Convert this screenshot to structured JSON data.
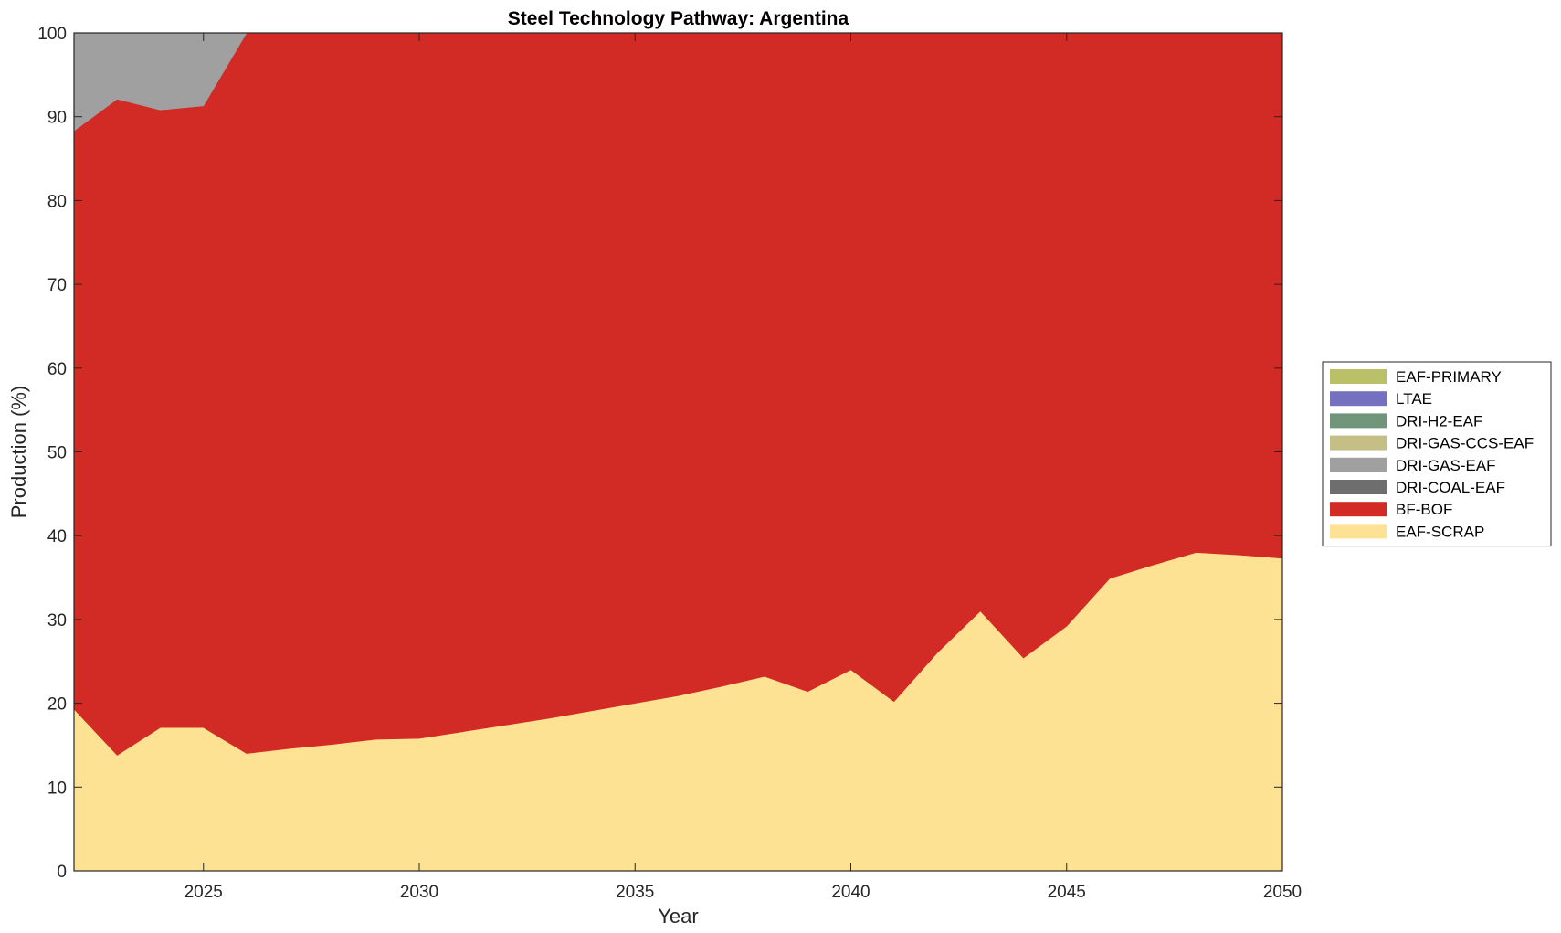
{
  "chart_data": {
    "type": "area",
    "stacked": true,
    "title": "Steel Technology Pathway: Argentina",
    "xlabel": "Year",
    "ylabel": "Production (%)",
    "xlim": [
      2022,
      2050
    ],
    "ylim": [
      0,
      100
    ],
    "xticks": [
      "2025",
      "2030",
      "2035",
      "2040",
      "2045",
      "2050"
    ],
    "yticks": [
      "0",
      "10",
      "20",
      "30",
      "40",
      "50",
      "60",
      "70",
      "80",
      "90",
      "100"
    ],
    "grid": false,
    "legend_position": "right",
    "x": [
      2022,
      2023,
      2024,
      2025,
      2026,
      2027,
      2028,
      2029,
      2030,
      2031,
      2032,
      2033,
      2034,
      2035,
      2036,
      2037,
      2038,
      2039,
      2040,
      2041,
      2042,
      2043,
      2044,
      2045,
      2046,
      2047,
      2048,
      2049,
      2050
    ],
    "series": [
      {
        "name": "EAF-SCRAP",
        "color": "#FDE293",
        "values": [
          19.3,
          13.8,
          17.1,
          17.1,
          14.0,
          14.6,
          15.1,
          15.7,
          15.8,
          16.6,
          17.4,
          18.2,
          19.1,
          20.0,
          20.9,
          22.0,
          23.2,
          21.4,
          24.0,
          20.2,
          26.0,
          31.0,
          25.4,
          29.2,
          34.9,
          36.5,
          38.0,
          37.7,
          37.3
        ]
      },
      {
        "name": "BF-BOF",
        "color": "#D22A24",
        "values": [
          69.0,
          78.3,
          73.7,
          74.2,
          86.0,
          85.4,
          84.9,
          84.3,
          84.2,
          83.4,
          82.6,
          81.8,
          80.9,
          80.0,
          79.1,
          78.0,
          76.8,
          78.6,
          76.0,
          79.8,
          74.0,
          69.0,
          74.6,
          70.8,
          65.1,
          63.5,
          62.0,
          62.3,
          62.7
        ]
      },
      {
        "name": "DRI-COAL-EAF",
        "color": "#6E6E6E",
        "values": [
          0,
          0,
          0,
          0,
          0,
          0,
          0,
          0,
          0,
          0,
          0,
          0,
          0,
          0,
          0,
          0,
          0,
          0,
          0,
          0,
          0,
          0,
          0,
          0,
          0,
          0,
          0,
          0,
          0
        ]
      },
      {
        "name": "DRI-GAS-EAF",
        "color": "#A0A0A0",
        "values": [
          11.7,
          7.9,
          9.2,
          8.7,
          0,
          0,
          0,
          0,
          0,
          0,
          0,
          0,
          0,
          0,
          0,
          0,
          0,
          0,
          0,
          0,
          0,
          0,
          0,
          0,
          0,
          0,
          0,
          0,
          0
        ]
      },
      {
        "name": "DRI-GAS-CCS-EAF",
        "color": "#C5BF85",
        "values": [
          0,
          0,
          0,
          0,
          0,
          0,
          0,
          0,
          0,
          0,
          0,
          0,
          0,
          0,
          0,
          0,
          0,
          0,
          0,
          0,
          0,
          0,
          0,
          0,
          0,
          0,
          0,
          0,
          0
        ]
      },
      {
        "name": "DRI-H2-EAF",
        "color": "#70957A",
        "values": [
          0,
          0,
          0,
          0,
          0,
          0,
          0,
          0,
          0,
          0,
          0,
          0,
          0,
          0,
          0,
          0,
          0,
          0,
          0,
          0,
          0,
          0,
          0,
          0,
          0,
          0,
          0,
          0,
          0
        ]
      },
      {
        "name": "LTAE",
        "color": "#7570C0",
        "values": [
          0,
          0,
          0,
          0,
          0,
          0,
          0,
          0,
          0,
          0,
          0,
          0,
          0,
          0,
          0,
          0,
          0,
          0,
          0,
          0,
          0,
          0,
          0,
          0,
          0,
          0,
          0,
          0,
          0
        ]
      },
      {
        "name": "EAF-PRIMARY",
        "color": "#B9C067",
        "values": [
          0,
          0,
          0,
          0,
          0,
          0,
          0,
          0,
          0,
          0,
          0,
          0,
          0,
          0,
          0,
          0,
          0,
          0,
          0,
          0,
          0,
          0,
          0,
          0,
          0,
          0,
          0,
          0,
          0
        ]
      }
    ],
    "legend_order": [
      "EAF-PRIMARY",
      "LTAE",
      "DRI-H2-EAF",
      "DRI-GAS-CCS-EAF",
      "DRI-GAS-EAF",
      "DRI-COAL-EAF",
      "BF-BOF",
      "EAF-SCRAP"
    ]
  }
}
